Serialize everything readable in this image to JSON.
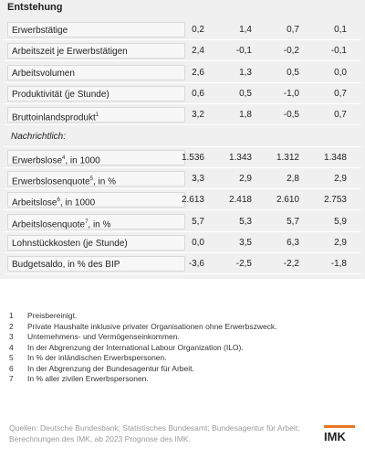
{
  "table": {
    "header": "Entstehung",
    "rows": [
      {
        "label": "Erwerbstätige",
        "values": [
          "0,2",
          "1,4",
          "0,7",
          "0,1"
        ]
      },
      {
        "label": "Arbeitszeit je Erwerbstätigen",
        "values": [
          "2,4",
          "-0,1",
          "-0,2",
          "-0,1"
        ]
      },
      {
        "label": "Arbeitsvolumen",
        "values": [
          "2,6",
          "1,3",
          "0,5",
          "0,0"
        ]
      },
      {
        "label": "Produktivität (je Stunde)",
        "values": [
          "0,6",
          "0,5",
          "-1,0",
          "0,7"
        ]
      },
      {
        "label": "Bruttoinlandsprodukt",
        "sup": "1",
        "values": [
          "3,2",
          "1,8",
          "-0,5",
          "0,7"
        ]
      },
      {
        "label": "Nachrichtlich:",
        "values": []
      },
      {
        "label": "Erwerbslose",
        "sup": "4",
        "suffix": ", in 1000",
        "values": [
          "1.536",
          "1.343",
          "1.312",
          "1.348"
        ]
      },
      {
        "label": "Erwerbslosenquote",
        "sup": "5",
        "suffix": ", in %",
        "values": [
          "3,3",
          "2,9",
          "2,8",
          "2,9"
        ]
      },
      {
        "label": "Arbeitslose",
        "sup": "6",
        "suffix": ", in 1000",
        "values": [
          "2.613",
          "2.418",
          "2.610",
          "2.753"
        ]
      },
      {
        "label": "Arbeitslosenquote",
        "sup": "7",
        "suffix": ", in %",
        "values": [
          "5,7",
          "5,3",
          "5,7",
          "5,9"
        ]
      },
      {
        "label": "Lohnstückkosten (je Stunde)",
        "values": [
          "0,0",
          "3,5",
          "6,3",
          "2,9"
        ]
      },
      {
        "label": "Budgetsaldo, in % des BIP",
        "values": [
          "-3,6",
          "-2,5",
          "-2,2",
          "-1,8"
        ]
      }
    ]
  },
  "footnotes": [
    {
      "number": "1",
      "text": "Preisbereinigt."
    },
    {
      "number": "2",
      "text": "Private Haushalte inklusive privater Organisationen ohne Erwerbszweck."
    },
    {
      "number": "3",
      "text": "Unternehmens- und Vermögenseinkommen."
    },
    {
      "number": "4",
      "text": "In der Abgrenzung der International Labour Organization (ILO)."
    },
    {
      "number": "5",
      "text": "In % der inländischen Erwerbspersonen."
    },
    {
      "number": "6",
      "text": "In der Abgrenzung der Bundesagentur für Arbeit."
    },
    {
      "number": "7",
      "text": "In % aller zivilen Erwerbspersonen."
    }
  ],
  "source": "Quellen: Deutsche Bundesbank; Statistisches Bundesamt; Bundesagentur für Arbeit; Berechnungen des IMK, ab 2023 Prognose des IMK.",
  "logo": "IMK"
}
